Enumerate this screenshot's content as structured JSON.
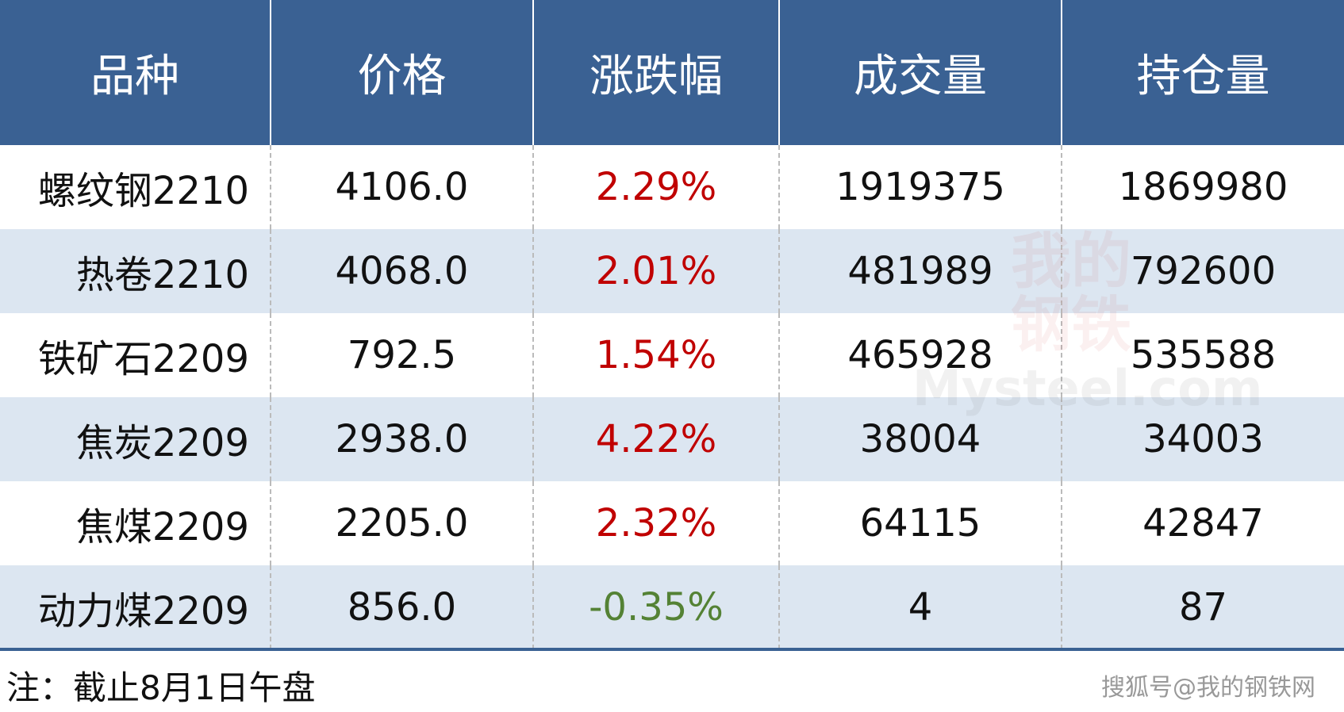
{
  "table": {
    "header": [
      "品种",
      "价格",
      "涨跌幅",
      "成交量",
      "持仓量"
    ],
    "rows": [
      [
        "螺纹钢2210",
        "4106.0",
        "2.29%",
        "1919375",
        "1869980"
      ],
      [
        "热卷2210",
        "4068.0",
        "2.01%",
        "481989",
        "792600"
      ],
      [
        "铁矿石2209",
        "792.5",
        "1.54%",
        "465928",
        "535588"
      ],
      [
        "焦炭2209",
        "2938.0",
        "4.22%",
        "38004",
        "34003"
      ],
      [
        "焦煤2209",
        "2205.0",
        "2.32%",
        "64115",
        "42847"
      ],
      [
        "动力煤2209",
        "856.0",
        "-0.35%",
        "4",
        "87"
      ]
    ]
  },
  "watermark": {
    "top": "我的",
    "middle": "钢铁",
    "bottom": "Mysteel.com"
  },
  "footer": {
    "note": "注：截止8月1日午盘",
    "source": "搜狐号@我的钢铁网"
  }
}
